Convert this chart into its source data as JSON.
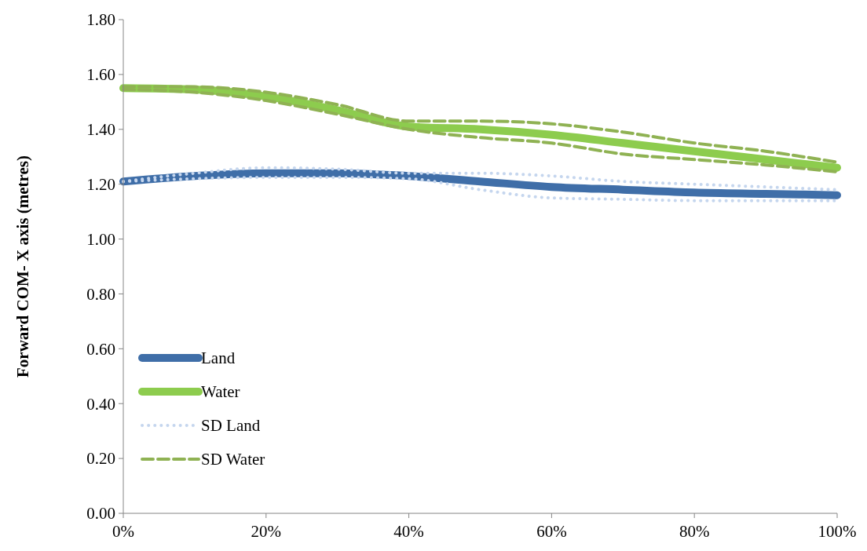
{
  "chart_data": {
    "type": "line",
    "ylabel": "Forward  COM- X axis (metres)",
    "x": [
      0,
      10,
      20,
      30,
      40,
      50,
      60,
      70,
      80,
      90,
      100
    ],
    "xlim": [
      0,
      100
    ],
    "xticks": [
      {
        "value": 0,
        "label": "0%"
      },
      {
        "value": 20,
        "label": "20%"
      },
      {
        "value": 40,
        "label": "40%"
      },
      {
        "value": 60,
        "label": "60%"
      },
      {
        "value": 80,
        "label": "80%"
      },
      {
        "value": 100,
        "label": "100%"
      }
    ],
    "ylim": [
      0,
      1.8
    ],
    "yticks": [
      {
        "value": 0,
        "label": "0.00"
      },
      {
        "value": 0.2,
        "label": "0.20"
      },
      {
        "value": 0.4,
        "label": "0.40"
      },
      {
        "value": 0.6,
        "label": "0.60"
      },
      {
        "value": 0.8,
        "label": "0.80"
      },
      {
        "value": 1,
        "label": "1.00"
      },
      {
        "value": 1.2,
        "label": "1.20"
      },
      {
        "value": 1.4,
        "label": "1.40"
      },
      {
        "value": 1.6,
        "label": "1.60"
      },
      {
        "value": 1.8,
        "label": "1.80"
      }
    ],
    "grid": false,
    "legend": "bottom left",
    "marker": "none",
    "series": [
      {
        "name": "Land",
        "color": "#3f6ea8",
        "line_style": "solid",
        "values": [
          1.21,
          1.23,
          1.24,
          1.24,
          1.23,
          1.21,
          1.19,
          1.18,
          1.17,
          1.165,
          1.16
        ]
      },
      {
        "name": "Water",
        "color": "#8dcc4e",
        "line_style": "solid",
        "values": [
          1.55,
          1.545,
          1.52,
          1.47,
          1.41,
          1.4,
          1.38,
          1.35,
          1.32,
          1.29,
          1.26
        ]
      },
      {
        "name": "SD Land",
        "color": "#c5d6ee",
        "line_style": "dotted",
        "values": [
          1.21,
          1.24,
          1.26,
          1.255,
          1.24,
          1.24,
          1.23,
          1.21,
          1.2,
          1.19,
          1.18
        ]
      },
      {
        "color": "#c5d6ee",
        "line_style": "dotted",
        "values": [
          1.21,
          1.22,
          1.225,
          1.225,
          1.22,
          1.18,
          1.15,
          1.145,
          1.14,
          1.14,
          1.14
        ]
      },
      {
        "name": "SD Water",
        "color": "#8fb253",
        "line_style": "dashed",
        "values": [
          1.555,
          1.555,
          1.535,
          1.49,
          1.43,
          1.43,
          1.42,
          1.39,
          1.35,
          1.32,
          1.28
        ]
      },
      {
        "color": "#8fb253",
        "line_style": "dashed",
        "values": [
          1.545,
          1.535,
          1.505,
          1.455,
          1.4,
          1.37,
          1.35,
          1.31,
          1.29,
          1.27,
          1.245
        ]
      }
    ]
  }
}
